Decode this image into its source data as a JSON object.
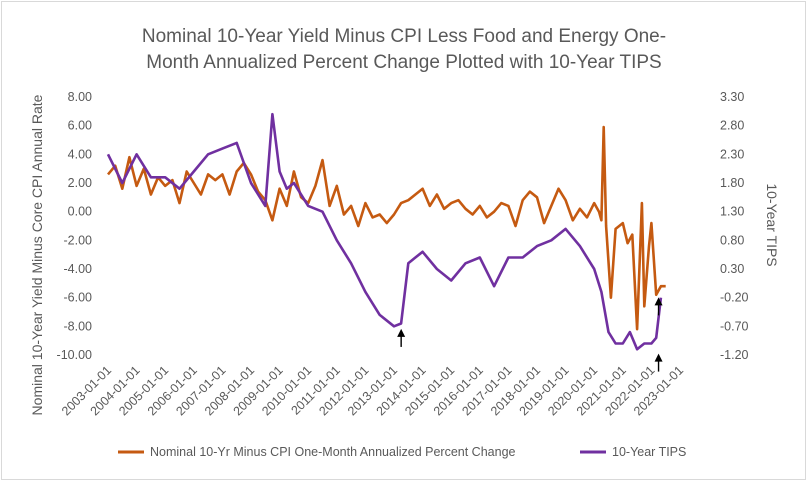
{
  "chart_data": {
    "type": "line",
    "title_lines": [
      "Nominal 10-Year Yield Minus CPI Less Food and Energy One-",
      "Month Annualized Percent Change Plotted with 10-Year TIPS"
    ],
    "ylabel": "Nominal 10-Year Yield Minus Core CPI Annual Rate",
    "y2label": "10-Year TIPS",
    "x_ticks": [
      "2003-01-01",
      "2004-01-01",
      "2005-01-01",
      "2006-01-01",
      "2007-01-01",
      "2008-01-01",
      "2009-01-01",
      "2010-01-01",
      "2011-01-01",
      "2012-01-01",
      "2013-01-01",
      "2014-01-01",
      "2015-01-01",
      "2016-01-01",
      "2017-01-01",
      "2018-01-01",
      "2019-01-01",
      "2020-01-01",
      "2021-01-01",
      "2022-01-01",
      "2023-01-01"
    ],
    "y_ticks": [
      "8.00",
      "6.00",
      "4.00",
      "2.00",
      "0.00",
      "-2.00",
      "-4.00",
      "-6.00",
      "-8.00",
      "-10.00"
    ],
    "y2_ticks": [
      "3.30",
      "2.80",
      "2.30",
      "1.80",
      "1.30",
      "0.80",
      "0.30",
      "-0.20",
      "-0.70",
      "-1.20"
    ],
    "ylim": [
      -10,
      8
    ],
    "y2lim": [
      -1.2,
      3.3
    ],
    "xlim": [
      "2003-01-01",
      "2023-01-01"
    ],
    "grid": false,
    "legend_position": "bottom",
    "series": [
      {
        "name": "Nominal 10-Yr Minus CPI One-Month Annualized Percent Change",
        "color": "#c55a11",
        "axis": "left",
        "x": [
          "2003-01",
          "2003-04",
          "2003-07",
          "2003-10",
          "2004-01",
          "2004-04",
          "2004-07",
          "2004-10",
          "2005-01",
          "2005-04",
          "2005-07",
          "2005-10",
          "2006-01",
          "2006-04",
          "2006-07",
          "2006-10",
          "2007-01",
          "2007-04",
          "2007-07",
          "2007-10",
          "2008-01",
          "2008-04",
          "2008-07",
          "2008-10",
          "2009-01",
          "2009-04",
          "2009-07",
          "2009-10",
          "2010-01",
          "2010-04",
          "2010-07",
          "2010-10",
          "2011-01",
          "2011-04",
          "2011-07",
          "2011-10",
          "2012-01",
          "2012-04",
          "2012-07",
          "2012-10",
          "2013-01",
          "2013-04",
          "2013-07",
          "2013-10",
          "2014-01",
          "2014-04",
          "2014-07",
          "2014-10",
          "2015-01",
          "2015-04",
          "2015-07",
          "2015-10",
          "2016-01",
          "2016-04",
          "2016-07",
          "2016-10",
          "2017-01",
          "2017-04",
          "2017-07",
          "2017-10",
          "2018-01",
          "2018-04",
          "2018-07",
          "2018-10",
          "2019-01",
          "2019-04",
          "2019-07",
          "2019-10",
          "2020-01",
          "2020-03",
          "2020-04",
          "2020-05",
          "2020-06",
          "2020-08",
          "2020-10",
          "2021-01",
          "2021-03",
          "2021-05",
          "2021-07",
          "2021-09",
          "2021-10",
          "2021-12",
          "2022-01",
          "2022-03",
          "2022-05",
          "2022-07"
        ],
        "values": [
          2.6,
          3.2,
          1.6,
          3.8,
          1.8,
          3.0,
          1.2,
          2.4,
          1.8,
          2.2,
          0.6,
          2.8,
          2.0,
          1.2,
          2.6,
          2.2,
          2.6,
          1.2,
          2.8,
          3.4,
          2.6,
          1.4,
          0.8,
          -0.6,
          1.6,
          0.4,
          2.8,
          1.0,
          0.6,
          1.8,
          3.6,
          0.4,
          1.8,
          -0.2,
          0.4,
          -1.0,
          0.6,
          -0.4,
          -0.2,
          -0.8,
          -0.2,
          0.6,
          0.8,
          1.2,
          1.6,
          0.4,
          1.2,
          0.2,
          0.6,
          0.8,
          0.2,
          -0.2,
          0.4,
          -0.4,
          0.0,
          0.6,
          0.4,
          -1.0,
          0.8,
          1.4,
          1.0,
          -0.8,
          0.4,
          1.6,
          0.8,
          -0.6,
          0.2,
          -0.4,
          0.6,
          0.0,
          -0.6,
          5.9,
          -1.0,
          -6.0,
          -1.2,
          -0.8,
          -2.2,
          -1.6,
          -8.2,
          0.6,
          -6.6,
          -2.4,
          -0.8,
          -5.8,
          -5.2,
          -5.2
        ]
      },
      {
        "name": "10-Year TIPS",
        "color": "#7030a0",
        "axis": "right",
        "x": [
          "2003-01",
          "2003-07",
          "2004-01",
          "2004-07",
          "2005-01",
          "2005-07",
          "2006-01",
          "2006-07",
          "2007-01",
          "2007-07",
          "2008-01",
          "2008-07",
          "2008-10",
          "2009-01",
          "2009-04",
          "2009-07",
          "2010-01",
          "2010-07",
          "2011-01",
          "2011-07",
          "2012-01",
          "2012-07",
          "2013-01",
          "2013-04",
          "2013-07",
          "2013-10",
          "2014-01",
          "2014-07",
          "2015-01",
          "2015-07",
          "2016-01",
          "2016-07",
          "2017-01",
          "2017-07",
          "2018-01",
          "2018-07",
          "2019-01",
          "2019-07",
          "2020-01",
          "2020-04",
          "2020-07",
          "2020-10",
          "2021-01",
          "2021-04",
          "2021-07",
          "2021-10",
          "2022-01",
          "2022-03",
          "2022-05"
        ],
        "values": [
          2.3,
          1.8,
          2.3,
          1.9,
          1.9,
          1.7,
          2.0,
          2.3,
          2.4,
          2.5,
          1.8,
          1.4,
          3.0,
          2.0,
          1.7,
          1.8,
          1.4,
          1.3,
          0.8,
          0.4,
          -0.1,
          -0.5,
          -0.7,
          -0.65,
          0.4,
          0.5,
          0.6,
          0.3,
          0.1,
          0.4,
          0.5,
          0.0,
          0.5,
          0.5,
          0.7,
          0.8,
          1.0,
          0.7,
          0.3,
          -0.1,
          -0.8,
          -1.0,
          -1.0,
          -0.8,
          -1.1,
          -1.0,
          -1.0,
          -0.9,
          -0.2
        ]
      }
    ],
    "annotations": [
      {
        "type": "arrow",
        "direction": "up",
        "x": "2013-04",
        "axis": "right",
        "value": -0.85
      },
      {
        "type": "arrow",
        "direction": "up",
        "x": "2022-04",
        "axis": "left",
        "value": -6.4
      },
      {
        "type": "arrow",
        "direction": "up",
        "x": "2022-04",
        "axis": "right",
        "value": -1.28
      }
    ]
  }
}
